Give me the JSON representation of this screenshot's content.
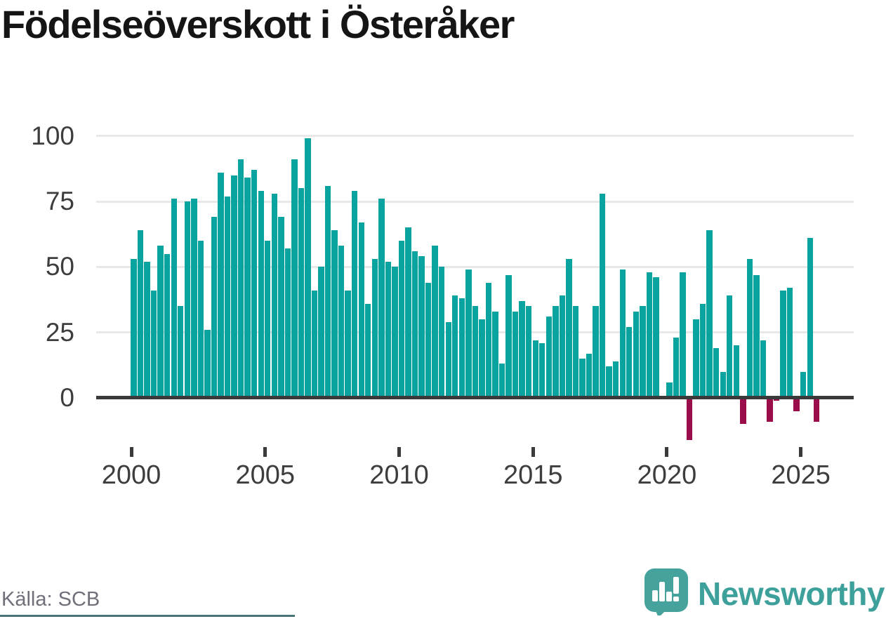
{
  "title": "Födelseöverskott i Österåker",
  "source": "Källa: SCB",
  "footer_brand": "Newsworthy",
  "colors": {
    "positive_bar": "#09a4a0",
    "negative_bar": "#9b0d4a",
    "grid": "#e8e8e8",
    "axis": "#3a3a3a",
    "axis_label": "#3d3d3d",
    "title_text": "#151515",
    "source_text": "#70707a",
    "brand_teal": "#3da09a",
    "logo_fill": "#46a29c"
  },
  "chart_data": {
    "type": "bar",
    "title": "Födelseöverskott i Österåker",
    "frequency": "quarterly",
    "start_year": 2000,
    "start_quarter": 1,
    "x_tick_labels": [
      "2000",
      "2005",
      "2010",
      "2015",
      "2020",
      "2025"
    ],
    "y_ticks": [
      0,
      25,
      50,
      75,
      100
    ],
    "ylim": [
      -20,
      105
    ],
    "grid": "horizontal",
    "legend": "none",
    "values": [
      53,
      64,
      52,
      41,
      58,
      55,
      76,
      35,
      75,
      76,
      60,
      26,
      69,
      86,
      77,
      85,
      91,
      84,
      87,
      79,
      60,
      78,
      69,
      57,
      91,
      80,
      99,
      41,
      50,
      81,
      64,
      58,
      41,
      79,
      67,
      36,
      53,
      76,
      52,
      50,
      60,
      65,
      56,
      54,
      44,
      58,
      50,
      29,
      39,
      38,
      49,
      35,
      30,
      44,
      33,
      13,
      47,
      33,
      37,
      35,
      22,
      21,
      31,
      35,
      39,
      53,
      35,
      15,
      17,
      35,
      78,
      12,
      14,
      49,
      27,
      33,
      35,
      48,
      46,
      0,
      6,
      23,
      48,
      -16,
      30,
      36,
      64,
      19,
      10,
      39,
      20,
      -10,
      53,
      47,
      22,
      -9,
      -1,
      41,
      42,
      -5,
      10,
      61,
      -9
    ]
  }
}
